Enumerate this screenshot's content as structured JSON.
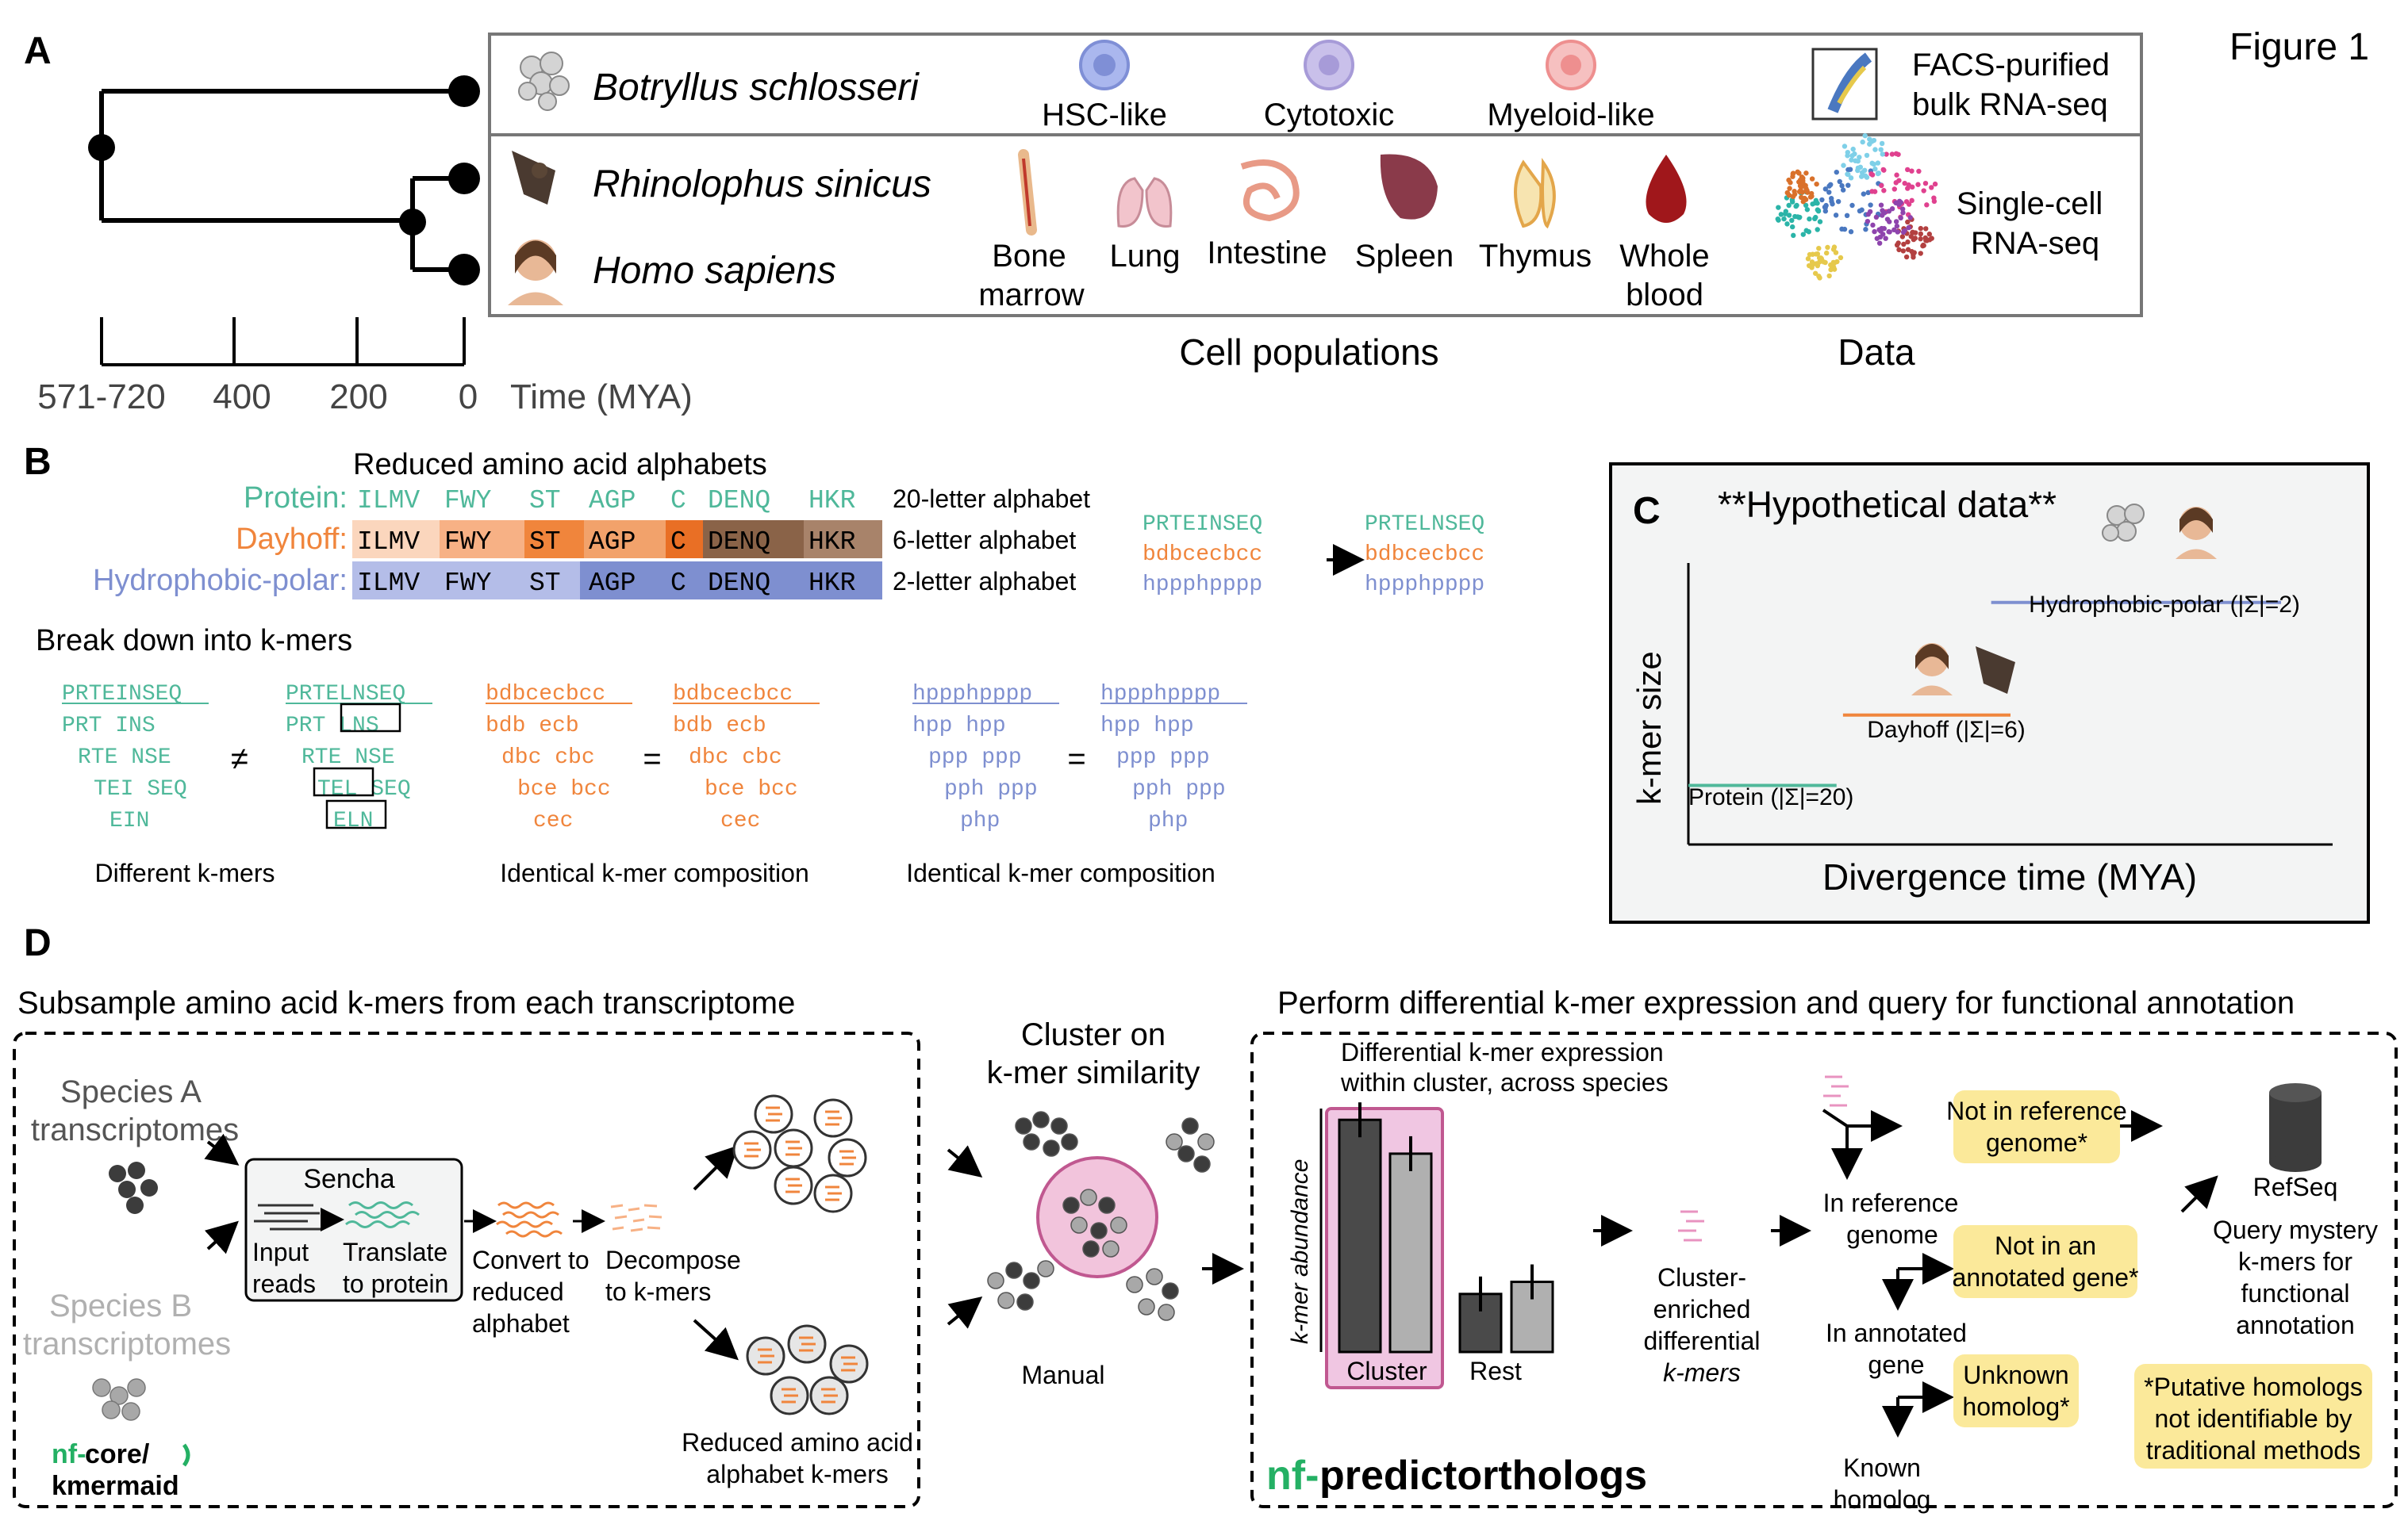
{
  "figure_title": "Figure 1",
  "panelA": {
    "label": "A",
    "species": [
      "Botryllus schlosseri",
      "Rhinolophus sinicus",
      "Homo sapiens"
    ],
    "timescale": {
      "ticks": [
        "571-720",
        "400",
        "200",
        "0"
      ],
      "label": "Time (MYA)"
    },
    "cells": [
      "HSC-like",
      "Cytotoxic",
      "Myeloid-like"
    ],
    "data_top": [
      "FACS-purified",
      "bulk RNA-seq"
    ],
    "tissues": {
      "bone": [
        "Bone",
        "marrow"
      ],
      "lung": "Lung",
      "intestine": "Intestine",
      "spleen": "Spleen",
      "thymus": "Thymus",
      "blood": [
        "Whole",
        "blood"
      ]
    },
    "data_bottom": [
      "Single-cell",
      "RNA-seq"
    ],
    "cell_populations_label": "Cell populations",
    "data_label": "Data",
    "colors": {
      "hsc": "#7f8fd6",
      "cytotoxic": "#a79bd8",
      "myeloid": "#ee8f8f",
      "blood": "#a0171b"
    }
  },
  "panelB": {
    "label": "B",
    "title": "Reduced amino acid alphabets",
    "rows": [
      {
        "name": "Protein:",
        "groups": [
          "ILMV",
          "FWY",
          "ST",
          "AGP",
          "C",
          "DENQ",
          "HKR"
        ],
        "note": "20-letter alphabet"
      },
      {
        "name": "Dayhoff:",
        "groups": [
          "ILMV",
          "FWY",
          "ST",
          "AGP",
          "C",
          "DENQ",
          "HKR"
        ],
        "note": "6-letter alphabet"
      },
      {
        "name": "Hydrophobic-polar:",
        "groups": [
          "ILMV",
          "FWY",
          "ST",
          "AGP",
          "C",
          "DENQ",
          "HKR"
        ],
        "note": "2-letter alphabet"
      }
    ],
    "example_left": [
      "PRTEINSEQ",
      "bdbcecbcc",
      "hppphpppp"
    ],
    "example_right": [
      "PRTELNSEQ",
      "bdbcecbcc",
      "hppphpppp"
    ],
    "breakdown_title": "Break down into k-mers",
    "kmer_protein_a": [
      "PRTEINSEQ",
      "PRT INS",
      "RTE NSE",
      "TEI SEQ",
      "EIN"
    ],
    "kmer_protein_b": [
      "PRTELNSEQ",
      "PRT LNS",
      "RTE NSE",
      "TEL SEQ",
      "ELN"
    ],
    "kmer_dayhoff_a": [
      "bdbcecbcc",
      "bdb ecb",
      "dbc cbc",
      "bce bcc",
      "cec"
    ],
    "kmer_dayhoff_b": [
      "bdbcecbcc",
      "bdb ecb",
      "dbc cbc",
      "bce bcc",
      "cec"
    ],
    "kmer_hp_a": [
      "hppphpppp",
      "hpp hpp",
      "ppp ppp",
      "pph ppp",
      "php"
    ],
    "kmer_hp_b": [
      "hppphpppp",
      "hpp hpp",
      "ppp ppp",
      "pph ppp",
      "php"
    ],
    "symbols": {
      "neq": "≠",
      "eq": "="
    },
    "captions": [
      "Different k-mers",
      "Identical k-mer composition",
      "Identical k-mer composition"
    ],
    "colors": {
      "protein": "#4fb89a",
      "dayhoff": "#f0853c",
      "hp": "#7e8fd0"
    }
  },
  "panelC": {
    "label": "C",
    "title": "**Hypothetical data**",
    "ylabel": "k-mer size",
    "xlabel": "Divergence time (MYA)"
  },
  "chart_data": {
    "type": "line",
    "title": "**Hypothetical data**",
    "xlabel": "Divergence time (MYA)",
    "ylabel": "k-mer size",
    "series": [
      {
        "name": "Protein (|Σ|=20)",
        "x": [
          0.0,
          0.23
        ],
        "y": [
          0.21,
          0.21
        ]
      },
      {
        "name": "Dayhoff (|Σ|=6)",
        "x": [
          0.24,
          0.5
        ],
        "y": [
          0.46,
          0.46
        ]
      },
      {
        "name": "Hydrophobic-polar (|Σ|=2)",
        "x": [
          0.47,
          0.92
        ],
        "y": [
          0.86,
          0.86
        ]
      }
    ],
    "colors": [
      "#4fb89a",
      "#f0853c",
      "#7e8fd0"
    ]
  },
  "panelD": {
    "label": "D",
    "left_title": "Subsample amino acid k-mers from each transcriptome",
    "right_title": "Perform differential k-mer expression and query for functional annotation",
    "speciesA": [
      "Species A",
      "transcriptomes"
    ],
    "speciesB": [
      "Species B",
      "transcriptomes"
    ],
    "sencha": "Sencha",
    "input_reads": [
      "Input",
      "reads"
    ],
    "translate": [
      "Translate",
      "to protein"
    ],
    "convert": [
      "Convert to",
      "reduced",
      "alphabet"
    ],
    "decompose": [
      "Decompose",
      "to k-mers"
    ],
    "reduced_kmers": [
      "Reduced amino acid",
      "alphabet k-mers"
    ],
    "kmermaid": [
      "nf-",
      "core/",
      "kmermaid"
    ],
    "cluster_title": [
      "Cluster on",
      "k-mer similarity"
    ],
    "manual": "Manual",
    "diff_title": [
      "Differential k-mer expression",
      "within cluster, across species"
    ],
    "bar_ylabel": "k-mer abundance",
    "bar_categories": [
      "Cluster",
      "Rest"
    ],
    "bar_values": [
      0.96,
      0.82,
      0.24,
      0.29
    ],
    "enriched": [
      "Cluster-",
      "enriched",
      "differential",
      "k-mers"
    ],
    "in_ref": [
      "In reference",
      "genome"
    ],
    "in_annot": [
      "In annotated",
      "gene"
    ],
    "known": [
      "Known",
      "homolog"
    ],
    "not_in_ref": [
      "Not in reference",
      "genome*"
    ],
    "not_in_annot": [
      "Not in an",
      "annotated gene*"
    ],
    "unknown": [
      "Unknown",
      "homolog*"
    ],
    "refseq": "RefSeq",
    "query": [
      "Query mystery",
      "k-mers  for",
      "functional",
      "annotation"
    ],
    "putative": [
      "*Putative homologs",
      "not identifiable by",
      "traditional methods"
    ],
    "predictorthologs": [
      "nf-",
      "predictorthologs"
    ]
  }
}
